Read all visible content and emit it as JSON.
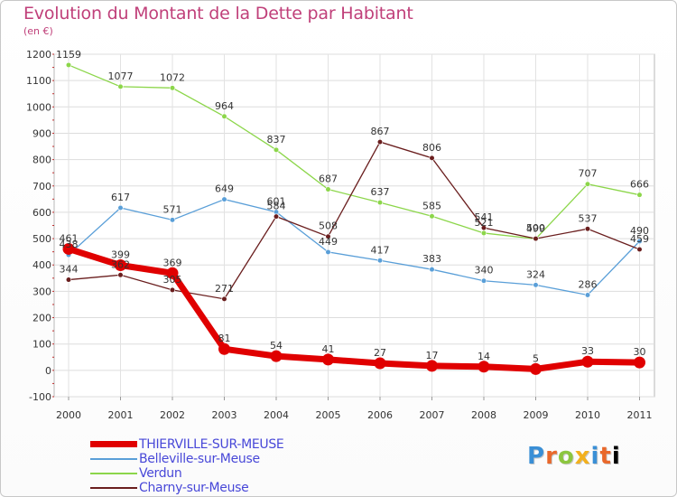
{
  "chart_data": {
    "type": "line",
    "title": "Evolution du Montant de la Dette par Habitant",
    "subtitle": "(en €)",
    "x": [
      "2000",
      "2001",
      "2002",
      "2003",
      "2004",
      "2005",
      "2006",
      "2007",
      "2008",
      "2009",
      "2010",
      "2011"
    ],
    "ylim": [
      -100,
      1200
    ],
    "yticks": [
      -100,
      0,
      100,
      200,
      300,
      400,
      500,
      600,
      700,
      800,
      900,
      1000,
      1100,
      1200
    ],
    "grid": true,
    "legend_position": "bottom-left",
    "series": [
      {
        "name": "THIERVILLE-SUR-MEUSE",
        "color": "#e00000",
        "emphasis": true,
        "values": [
          461,
          399,
          369,
          81,
          54,
          41,
          27,
          17,
          14,
          5,
          33,
          30
        ]
      },
      {
        "name": "Belleville-sur-Meuse",
        "color": "#5a9fd8",
        "values": [
          438,
          617,
          571,
          649,
          601,
          449,
          417,
          383,
          340,
          324,
          286,
          490
        ]
      },
      {
        "name": "Verdun",
        "color": "#8cd64a",
        "values": [
          1159,
          1077,
          1072,
          964,
          837,
          687,
          637,
          585,
          521,
          499,
          707,
          666
        ]
      },
      {
        "name": "Charny-sur-Meuse",
        "color": "#6a1e1e",
        "values": [
          344,
          362,
          305,
          271,
          584,
          508,
          867,
          806,
          541,
          500,
          537,
          459
        ]
      }
    ]
  },
  "logo": {
    "text": "Proxiti",
    "letters": [
      "P",
      "r",
      "o",
      "x",
      "i",
      "t",
      "i"
    ]
  }
}
